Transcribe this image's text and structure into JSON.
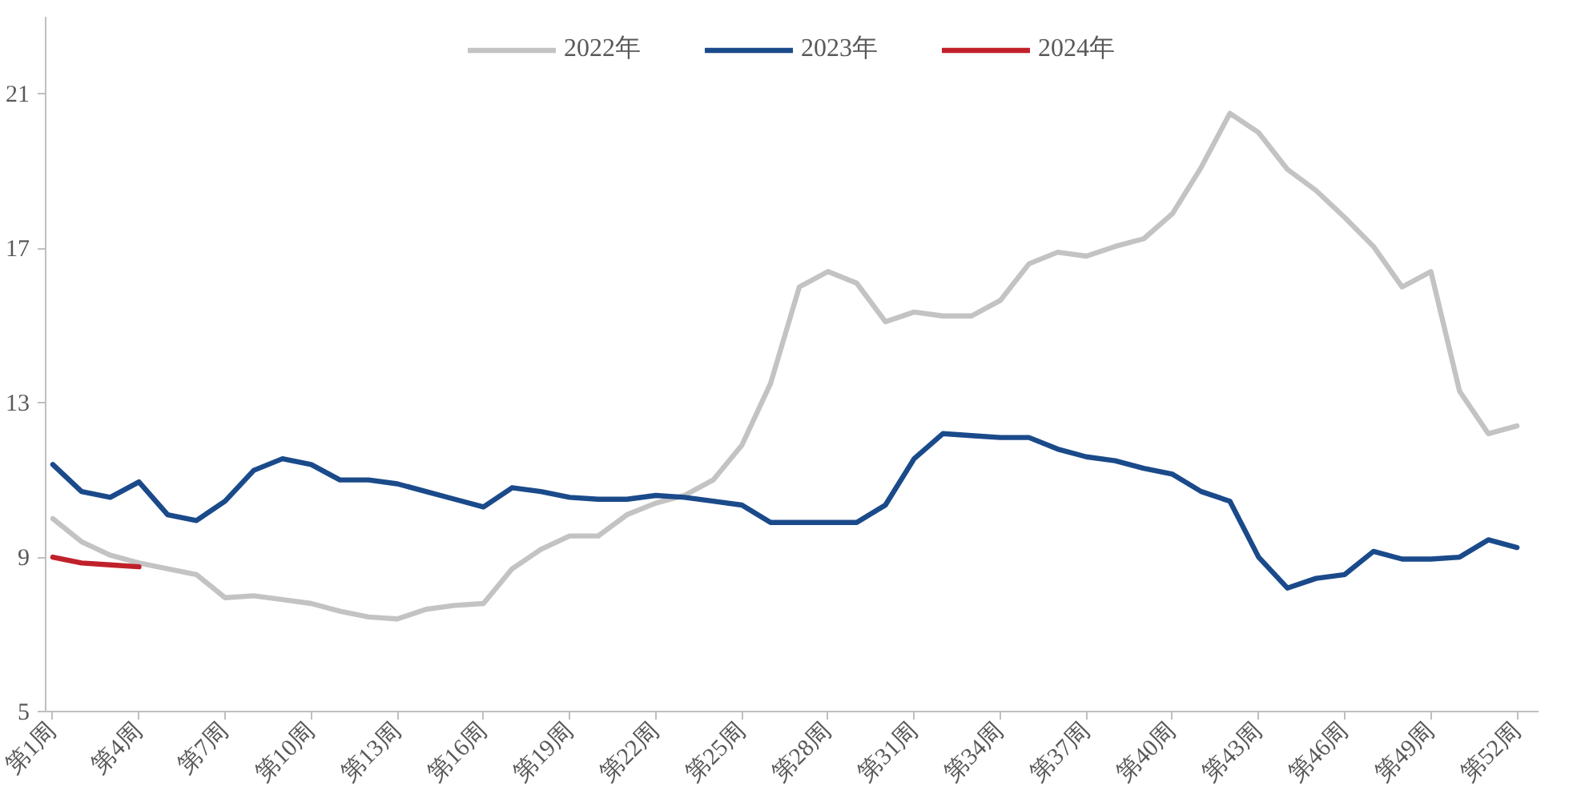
{
  "chart_data": {
    "type": "line",
    "categories": [
      "第1周",
      null,
      null,
      "第4周",
      null,
      null,
      "第7周",
      null,
      null,
      "第10周",
      null,
      null,
      "第13周",
      null,
      null,
      "第16周",
      null,
      null,
      "第19周",
      null,
      null,
      "第22周",
      null,
      null,
      "第25周",
      null,
      null,
      "第28周",
      null,
      null,
      "第31周",
      null,
      null,
      "第34周",
      null,
      null,
      "第37周",
      null,
      null,
      "第40周",
      null,
      null,
      "第43周",
      null,
      null,
      "第46周",
      null,
      null,
      "第49周",
      null,
      null,
      "第52周"
    ],
    "ylim": [
      5,
      23
    ],
    "yticks": [
      5,
      9,
      13,
      17,
      21
    ],
    "grid": false,
    "legend": "top",
    "line_style": "solid",
    "marker": "none",
    "series": [
      {
        "name": "2022年",
        "color": "#c3c3c3",
        "values": [
          10.0,
          9.4,
          9.05,
          8.85,
          8.7,
          8.55,
          7.95,
          8.0,
          7.9,
          7.8,
          7.6,
          7.45,
          7.4,
          7.65,
          7.75,
          7.8,
          8.7,
          9.2,
          9.55,
          9.55,
          10.1,
          10.4,
          10.6,
          11.0,
          11.9,
          13.5,
          16.0,
          16.4,
          16.1,
          15.1,
          15.35,
          15.25,
          15.25,
          15.65,
          16.6,
          16.9,
          16.8,
          17.05,
          17.25,
          17.9,
          19.1,
          20.5,
          20.0,
          19.05,
          18.5,
          17.8,
          17.05,
          16.0,
          16.4,
          13.3,
          12.2,
          12.4
        ]
      },
      {
        "name": "2023年",
        "color": "#1a4a8a",
        "values": [
          11.4,
          10.7,
          10.55,
          10.95,
          10.1,
          9.95,
          10.45,
          11.25,
          11.55,
          11.4,
          11.0,
          11.0,
          10.9,
          10.7,
          10.5,
          10.3,
          10.8,
          10.7,
          10.55,
          10.5,
          10.5,
          10.6,
          10.55,
          10.45,
          10.35,
          9.9,
          9.9,
          9.9,
          9.9,
          10.35,
          11.55,
          12.2,
          12.15,
          12.1,
          12.1,
          11.8,
          11.6,
          11.5,
          11.3,
          11.15,
          10.7,
          10.45,
          9.0,
          8.2,
          8.45,
          8.55,
          9.15,
          8.95,
          8.95,
          9.0,
          9.45,
          9.25
        ]
      },
      {
        "name": "2024年",
        "color": "#c0202a",
        "values": [
          9.0,
          8.85,
          8.8,
          8.75,
          null,
          null,
          null,
          null,
          null,
          null,
          null,
          null,
          null,
          null,
          null,
          null,
          null,
          null,
          null,
          null,
          null,
          null,
          null,
          null,
          null,
          null,
          null,
          null,
          null,
          null,
          null,
          null,
          null,
          null,
          null,
          null,
          null,
          null,
          null,
          null,
          null,
          null,
          null,
          null,
          null,
          null,
          null,
          null,
          null,
          null,
          null,
          null
        ]
      }
    ]
  }
}
